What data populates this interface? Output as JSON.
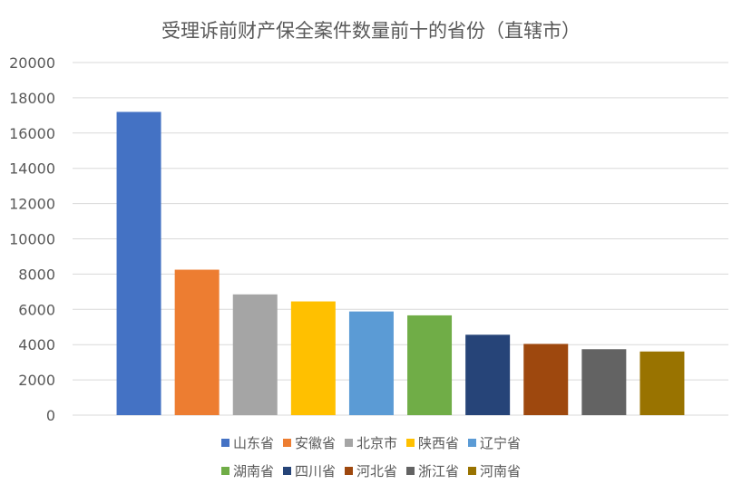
{
  "chart_data": {
    "type": "bar",
    "title": "受理诉前财产保全案件数量前十的省份（直辖市）",
    "xlabel": "",
    "ylabel": "",
    "ylim": [
      0,
      20000
    ],
    "yticks": [
      "20000",
      "18000",
      "16000",
      "14000",
      "12000",
      "10000",
      "8000",
      "6000",
      "4000",
      "2000",
      "0"
    ],
    "grid": true,
    "legend_position": "bottom",
    "series": [
      {
        "name": "山东省",
        "value": 17200,
        "color": "#4472C4"
      },
      {
        "name": "安徽省",
        "value": 8250,
        "color": "#ED7D31"
      },
      {
        "name": "北京市",
        "value": 6850,
        "color": "#A5A5A5"
      },
      {
        "name": "陕西省",
        "value": 6450,
        "color": "#FFC000"
      },
      {
        "name": "辽宁省",
        "value": 5880,
        "color": "#5B9BD5"
      },
      {
        "name": "湖南省",
        "value": 5660,
        "color": "#70AD47"
      },
      {
        "name": "四川省",
        "value": 4560,
        "color": "#264478"
      },
      {
        "name": "河北省",
        "value": 4040,
        "color": "#9E480E"
      },
      {
        "name": "浙江省",
        "value": 3740,
        "color": "#636363"
      },
      {
        "name": "河南省",
        "value": 3610,
        "color": "#997300"
      }
    ]
  }
}
